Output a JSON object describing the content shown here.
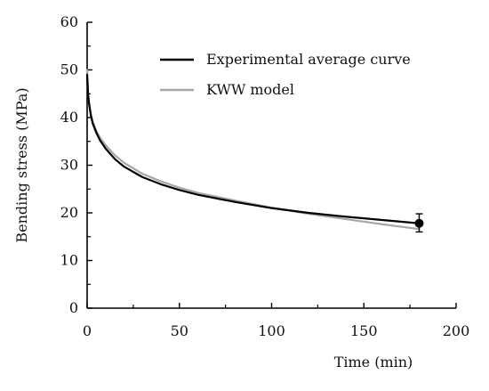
{
  "chart_data": {
    "type": "line",
    "xlabel": "Time (min)",
    "ylabel": "Bending stress (MPa)",
    "xlim": [
      0,
      200
    ],
    "ylim": [
      0,
      60
    ],
    "x_ticks": [
      0,
      50,
      100,
      150,
      200
    ],
    "y_ticks": [
      0,
      10,
      20,
      30,
      40,
      50,
      60
    ],
    "x_tick_labels": [
      "0",
      "50",
      "100",
      "150",
      "200"
    ],
    "y_tick_labels": [
      "0",
      "10",
      "20",
      "30",
      "40",
      "50",
      "60"
    ],
    "grid": false,
    "legend": "top-right",
    "series": [
      {
        "name": "Experimental average curve",
        "color": "#000000",
        "x": [
          0,
          0.5,
          1,
          2,
          3,
          5,
          7,
          10,
          15,
          20,
          30,
          40,
          50,
          60,
          80,
          100,
          120,
          140,
          160,
          180
        ],
        "y": [
          49,
          45,
          43,
          40.5,
          38.8,
          36.8,
          35.2,
          33.5,
          31.3,
          29.7,
          27.5,
          26,
          24.8,
          23.8,
          22.3,
          21,
          20,
          19.2,
          18.5,
          17.8
        ]
      },
      {
        "name": "KWW model",
        "color": "#a6a6a6",
        "x": [
          0,
          0.5,
          1,
          2,
          3,
          5,
          7,
          10,
          15,
          20,
          30,
          40,
          50,
          60,
          80,
          100,
          120,
          140,
          160,
          180
        ],
        "y": [
          50,
          45,
          43.2,
          40.8,
          39.2,
          37.2,
          35.8,
          34.2,
          32.1,
          30.5,
          28.2,
          26.6,
          25.3,
          24.2,
          22.6,
          21.1,
          19.8,
          18.7,
          17.6,
          16.6
        ]
      }
    ],
    "error_bar": {
      "x": 180,
      "y": 17.8,
      "low": 16,
      "high": 19.8
    }
  }
}
